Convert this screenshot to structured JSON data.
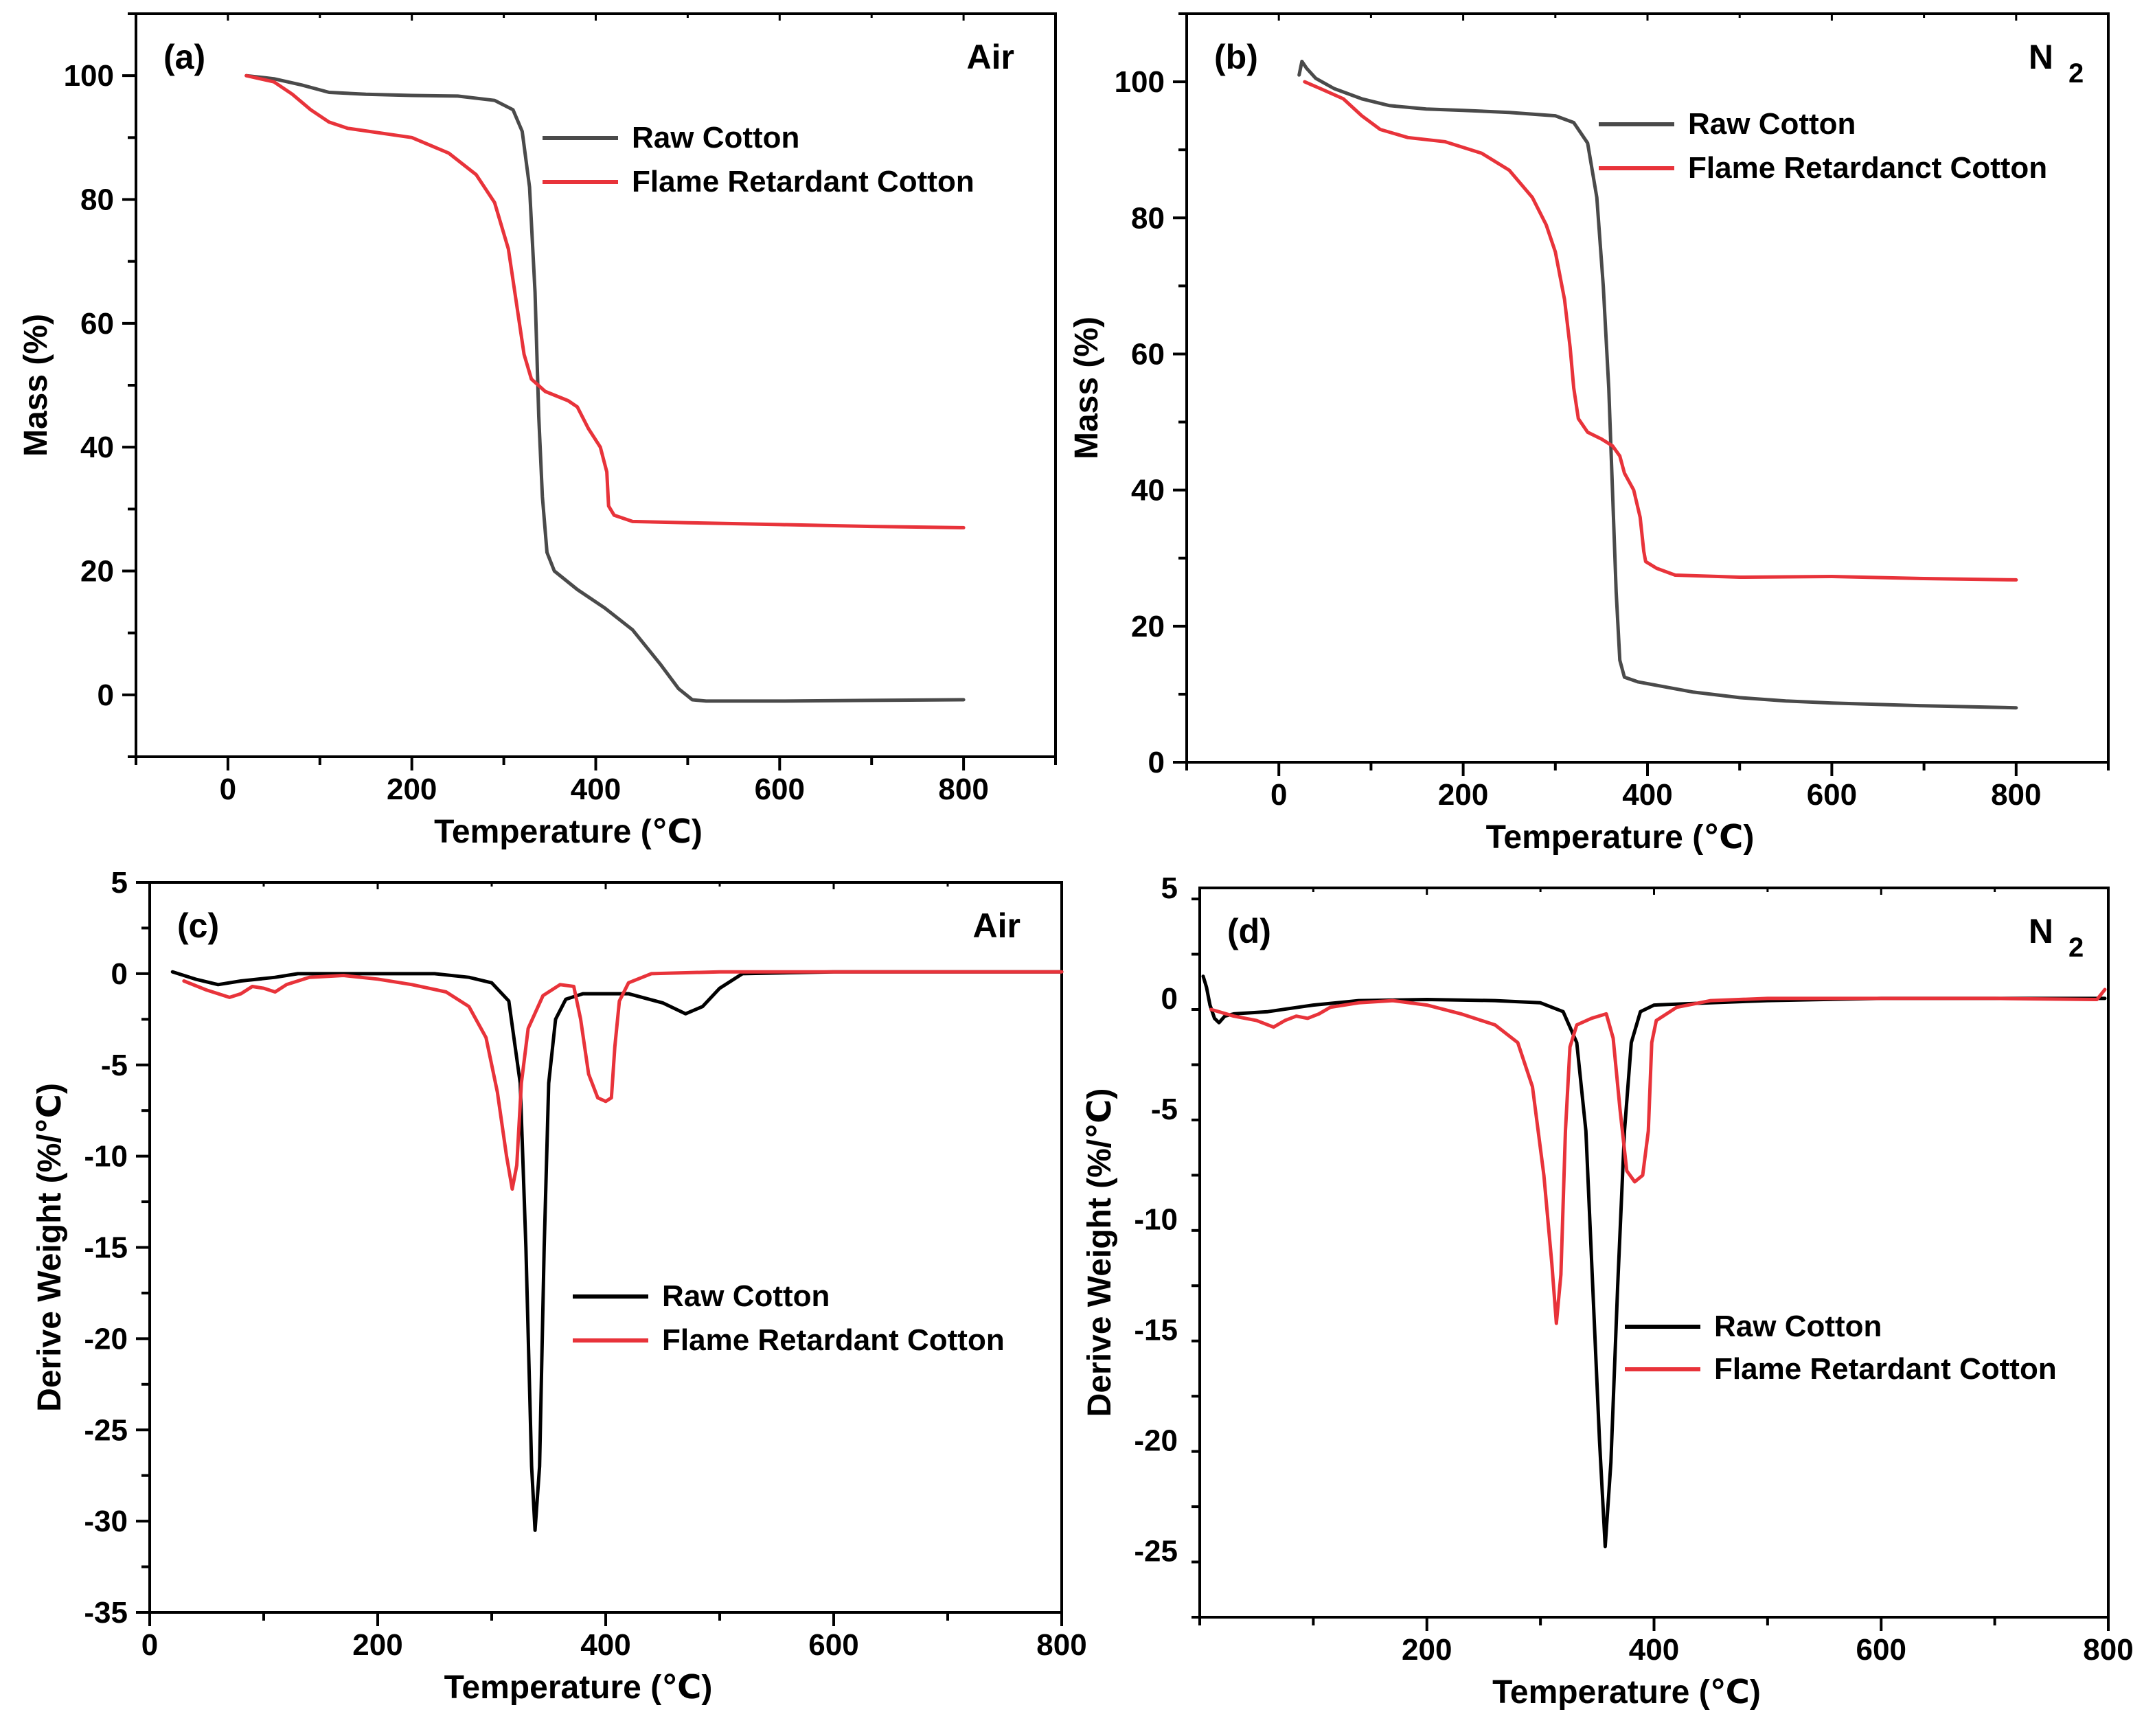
{
  "figure": {
    "colors": {
      "raw": "#000000",
      "raw_gray": "#4a4a4a",
      "fr": "#e8333a"
    }
  },
  "chart_data": [
    {
      "id": "a",
      "type": "line",
      "panel_label": "(a)",
      "corner_label": "Air",
      "corner_sub": "",
      "xlabel": "Temperature (℃)",
      "ylabel": "Mass (%)",
      "xlim": [
        -100,
        900
      ],
      "ylim": [
        -10,
        110
      ],
      "xticks": [
        0,
        200,
        400,
        600,
        800
      ],
      "yticks": [
        0,
        20,
        40,
        60,
        80,
        100
      ],
      "grid": false,
      "legend": "top-right",
      "series": [
        {
          "name": "Raw Cotton",
          "color_key": "raw_gray",
          "points": [
            [
              20,
              100
            ],
            [
              50,
              99.5
            ],
            [
              80,
              98.5
            ],
            [
              110,
              97.3
            ],
            [
              150,
              97
            ],
            [
              200,
              96.8
            ],
            [
              250,
              96.7
            ],
            [
              290,
              96
            ],
            [
              310,
              94.5
            ],
            [
              320,
              91
            ],
            [
              328,
              82
            ],
            [
              334,
              65
            ],
            [
              338,
              45
            ],
            [
              342,
              32
            ],
            [
              347,
              23
            ],
            [
              355,
              20
            ],
            [
              380,
              17
            ],
            [
              410,
              14
            ],
            [
              440,
              10.5
            ],
            [
              470,
              5
            ],
            [
              490,
              1
            ],
            [
              505,
              -0.8
            ],
            [
              520,
              -1
            ],
            [
              600,
              -1
            ],
            [
              700,
              -0.9
            ],
            [
              800,
              -0.8
            ]
          ]
        },
        {
          "name": "Flame Retardant Cotton",
          "color_key": "fr",
          "points": [
            [
              20,
              100
            ],
            [
              50,
              99
            ],
            [
              70,
              97
            ],
            [
              90,
              94.5
            ],
            [
              110,
              92.5
            ],
            [
              130,
              91.5
            ],
            [
              200,
              90
            ],
            [
              240,
              87.5
            ],
            [
              270,
              84
            ],
            [
              290,
              79.5
            ],
            [
              305,
              72
            ],
            [
              315,
              62
            ],
            [
              322,
              55
            ],
            [
              330,
              51
            ],
            [
              345,
              49
            ],
            [
              370,
              47.5
            ],
            [
              380,
              46.5
            ],
            [
              392,
              43
            ],
            [
              405,
              40
            ],
            [
              412,
              36
            ],
            [
              414,
              30.5
            ],
            [
              420,
              29
            ],
            [
              440,
              28
            ],
            [
              500,
              27.8
            ],
            [
              600,
              27.5
            ],
            [
              700,
              27.2
            ],
            [
              800,
              27
            ]
          ]
        }
      ]
    },
    {
      "id": "b",
      "type": "line",
      "panel_label": "(b)",
      "corner_label": "N",
      "corner_sub": "2",
      "xlabel": "Temperature (℃)",
      "ylabel": "Mass (%)",
      "xlim": [
        -100,
        900
      ],
      "ylim": [
        0,
        110
      ],
      "xticks": [
        0,
        200,
        400,
        600,
        800
      ],
      "yticks": [
        0,
        20,
        40,
        60,
        80,
        100
      ],
      "grid": false,
      "legend": "top-right",
      "series": [
        {
          "name": "Raw Cotton",
          "color_key": "raw_gray",
          "points": [
            [
              22,
              101
            ],
            [
              25,
              103
            ],
            [
              30,
              102
            ],
            [
              40,
              100.5
            ],
            [
              60,
              99
            ],
            [
              90,
              97.5
            ],
            [
              120,
              96.5
            ],
            [
              160,
              96
            ],
            [
              200,
              95.8
            ],
            [
              250,
              95.5
            ],
            [
              300,
              95
            ],
            [
              320,
              94
            ],
            [
              335,
              91
            ],
            [
              345,
              83
            ],
            [
              352,
              70
            ],
            [
              358,
              55
            ],
            [
              362,
              40
            ],
            [
              366,
              25
            ],
            [
              370,
              15
            ],
            [
              375,
              12.5
            ],
            [
              390,
              11.8
            ],
            [
              450,
              10.3
            ],
            [
              500,
              9.5
            ],
            [
              550,
              9
            ],
            [
              600,
              8.7
            ],
            [
              700,
              8.3
            ],
            [
              800,
              8
            ]
          ]
        },
        {
          "name": "Flame Retardanct Cotton",
          "color_key": "fr",
          "points": [
            [
              28,
              100
            ],
            [
              45,
              99
            ],
            [
              70,
              97.5
            ],
            [
              90,
              95
            ],
            [
              110,
              93
            ],
            [
              140,
              91.8
            ],
            [
              180,
              91.2
            ],
            [
              220,
              89.5
            ],
            [
              250,
              87
            ],
            [
              275,
              83
            ],
            [
              290,
              79
            ],
            [
              300,
              75
            ],
            [
              310,
              68
            ],
            [
              316,
              61
            ],
            [
              320,
              55
            ],
            [
              325,
              50.5
            ],
            [
              335,
              48.5
            ],
            [
              350,
              47.5
            ],
            [
              362,
              46.5
            ],
            [
              370,
              45
            ],
            [
              375,
              42.5
            ],
            [
              385,
              40
            ],
            [
              392,
              36
            ],
            [
              396,
              31
            ],
            [
              398,
              29.5
            ],
            [
              410,
              28.5
            ],
            [
              430,
              27.5
            ],
            [
              500,
              27.2
            ],
            [
              600,
              27.3
            ],
            [
              700,
              27
            ],
            [
              800,
              26.8
            ]
          ]
        }
      ]
    },
    {
      "id": "c",
      "type": "line",
      "panel_label": "(c)",
      "corner_label": "Air",
      "corner_sub": "",
      "xlabel": "Temperature (℃)",
      "ylabel": "Derive Weight (%/℃)",
      "xlim": [
        0,
        800
      ],
      "ylim": [
        -35,
        5
      ],
      "xticks": [
        0,
        200,
        400,
        600,
        800
      ],
      "yticks": [
        5,
        0,
        -5,
        -10,
        -15,
        -20,
        -25,
        -30,
        -35
      ],
      "grid": false,
      "legend": "center-right",
      "series": [
        {
          "name": "Raw Cotton",
          "color_key": "raw",
          "points": [
            [
              20,
              0.1
            ],
            [
              40,
              -0.3
            ],
            [
              60,
              -0.6
            ],
            [
              80,
              -0.4
            ],
            [
              110,
              -0.2
            ],
            [
              130,
              0
            ],
            [
              180,
              0
            ],
            [
              250,
              0
            ],
            [
              280,
              -0.2
            ],
            [
              300,
              -0.5
            ],
            [
              315,
              -1.5
            ],
            [
              325,
              -6
            ],
            [
              330,
              -15
            ],
            [
              335,
              -27
            ],
            [
              338,
              -30.5
            ],
            [
              342,
              -27
            ],
            [
              346,
              -15
            ],
            [
              350,
              -6
            ],
            [
              356,
              -2.5
            ],
            [
              365,
              -1.4
            ],
            [
              380,
              -1.1
            ],
            [
              420,
              -1.1
            ],
            [
              450,
              -1.6
            ],
            [
              470,
              -2.2
            ],
            [
              485,
              -1.8
            ],
            [
              500,
              -0.8
            ],
            [
              520,
              0
            ],
            [
              600,
              0.1
            ],
            [
              700,
              0.1
            ],
            [
              800,
              0.1
            ]
          ]
        },
        {
          "name": "Flame Retardant Cotton",
          "color_key": "fr",
          "points": [
            [
              30,
              -0.4
            ],
            [
              50,
              -0.9
            ],
            [
              70,
              -1.3
            ],
            [
              80,
              -1.1
            ],
            [
              90,
              -0.7
            ],
            [
              100,
              -0.8
            ],
            [
              110,
              -1
            ],
            [
              120,
              -0.6
            ],
            [
              140,
              -0.2
            ],
            [
              170,
              -0.1
            ],
            [
              200,
              -0.3
            ],
            [
              230,
              -0.6
            ],
            [
              260,
              -1
            ],
            [
              280,
              -1.8
            ],
            [
              295,
              -3.5
            ],
            [
              305,
              -6.5
            ],
            [
              313,
              -10
            ],
            [
              318,
              -11.8
            ],
            [
              322,
              -10.5
            ],
            [
              326,
              -6
            ],
            [
              332,
              -3
            ],
            [
              345,
              -1.2
            ],
            [
              360,
              -0.6
            ],
            [
              372,
              -0.7
            ],
            [
              378,
              -2.5
            ],
            [
              385,
              -5.5
            ],
            [
              393,
              -6.8
            ],
            [
              400,
              -7
            ],
            [
              405,
              -6.8
            ],
            [
              408,
              -4
            ],
            [
              412,
              -1.5
            ],
            [
              420,
              -0.5
            ],
            [
              440,
              0
            ],
            [
              500,
              0.1
            ],
            [
              600,
              0.1
            ],
            [
              700,
              0.1
            ],
            [
              800,
              0.1
            ]
          ]
        }
      ]
    },
    {
      "id": "d",
      "type": "line",
      "panel_label": "(d)",
      "corner_label": "N",
      "corner_sub": "2",
      "xlabel": "Temperature (℃)",
      "ylabel": "Derive Weight (%/℃)",
      "xlim": [
        0,
        800
      ],
      "ylim": [
        -28,
        5
      ],
      "xticks": [
        200,
        400,
        600,
        800
      ],
      "yticks": [
        5,
        0,
        -5,
        -10,
        -15,
        -20,
        -25
      ],
      "grid": false,
      "legend": "center-right",
      "series": [
        {
          "name": "Raw Cotton",
          "color_key": "raw",
          "points": [
            [
              3,
              1
            ],
            [
              6,
              0.5
            ],
            [
              9,
              -0.3
            ],
            [
              13,
              -0.9
            ],
            [
              17,
              -1.1
            ],
            [
              22,
              -0.8
            ],
            [
              30,
              -0.7
            ],
            [
              60,
              -0.6
            ],
            [
              100,
              -0.3
            ],
            [
              140,
              -0.1
            ],
            [
              200,
              -0.05
            ],
            [
              260,
              -0.1
            ],
            [
              300,
              -0.2
            ],
            [
              320,
              -0.6
            ],
            [
              332,
              -2
            ],
            [
              340,
              -6
            ],
            [
              346,
              -13
            ],
            [
              352,
              -20
            ],
            [
              357,
              -24.8
            ],
            [
              362,
              -21
            ],
            [
              368,
              -13
            ],
            [
              374,
              -6
            ],
            [
              380,
              -2
            ],
            [
              388,
              -0.6
            ],
            [
              400,
              -0.3
            ],
            [
              450,
              -0.2
            ],
            [
              500,
              -0.1
            ],
            [
              600,
              0
            ],
            [
              700,
              0
            ],
            [
              797,
              0
            ]
          ]
        },
        {
          "name": "Flame Retardant Cotton",
          "color_key": "fr",
          "points": [
            [
              10,
              -0.5
            ],
            [
              30,
              -0.8
            ],
            [
              50,
              -1
            ],
            [
              65,
              -1.3
            ],
            [
              75,
              -1
            ],
            [
              85,
              -0.8
            ],
            [
              95,
              -0.9
            ],
            [
              105,
              -0.7
            ],
            [
              115,
              -0.4
            ],
            [
              140,
              -0.2
            ],
            [
              170,
              -0.1
            ],
            [
              200,
              -0.3
            ],
            [
              230,
              -0.7
            ],
            [
              260,
              -1.2
            ],
            [
              280,
              -2
            ],
            [
              293,
              -4
            ],
            [
              303,
              -8
            ],
            [
              310,
              -12
            ],
            [
              314,
              -14.7
            ],
            [
              318,
              -12.5
            ],
            [
              322,
              -6
            ],
            [
              326,
              -2.2
            ],
            [
              332,
              -1.2
            ],
            [
              345,
              -0.9
            ],
            [
              358,
              -0.7
            ],
            [
              364,
              -1.8
            ],
            [
              370,
              -5
            ],
            [
              376,
              -7.8
            ],
            [
              383,
              -8.3
            ],
            [
              390,
              -8
            ],
            [
              395,
              -6
            ],
            [
              398,
              -2
            ],
            [
              402,
              -1
            ],
            [
              420,
              -0.4
            ],
            [
              450,
              -0.1
            ],
            [
              500,
              0
            ],
            [
              600,
              0
            ],
            [
              700,
              0
            ],
            [
              790,
              -0.05
            ],
            [
              797,
              0.4
            ]
          ]
        }
      ]
    }
  ]
}
